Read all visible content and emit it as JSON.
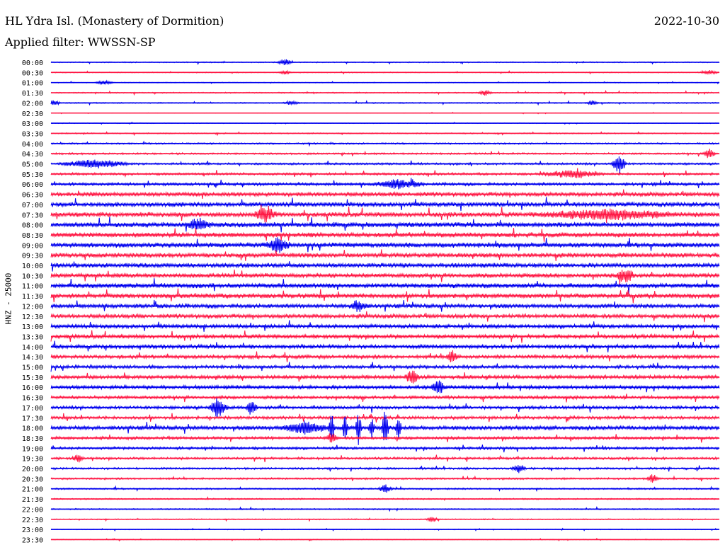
{
  "header": {
    "station": "HL Ydra Isl. (Monastery of Dormition)",
    "date": "2022-10-30",
    "filter": "Applied filter: WWSSN-SP",
    "channel": "HNZ - 25000"
  },
  "colors": {
    "odd_trace": "#0000ee",
    "even_trace": "#ff1744"
  },
  "chart_data": {
    "type": "line",
    "title": "HL Ydra Isl. (Monastery of Dormition)",
    "ylabel": "HNZ - 25000",
    "grid": false,
    "legend": "none",
    "rows": [
      "00:00",
      "00:30",
      "01:00",
      "01:30",
      "02:00",
      "02:30",
      "03:00",
      "03:30",
      "04:00",
      "04:30",
      "05:00",
      "05:30",
      "06:00",
      "06:30",
      "07:00",
      "07:30",
      "08:00",
      "08:30",
      "09:00",
      "09:30",
      "10:00",
      "10:30",
      "11:00",
      "11:30",
      "12:00",
      "12:30",
      "13:00",
      "13:30",
      "14:00",
      "14:30",
      "15:00",
      "15:30",
      "16:00",
      "16:30",
      "17:00",
      "17:30",
      "18:00",
      "18:30",
      "19:00",
      "19:30",
      "20:00",
      "20:30",
      "21:00",
      "21:30",
      "22:00",
      "22:30",
      "23:00",
      "23:30"
    ],
    "trace_colors": [
      "blue",
      "red"
    ],
    "noise_level": [
      0.8,
      0.7,
      0.6,
      0.9,
      0.9,
      0.4,
      0.5,
      0.9,
      1.2,
      1.4,
      1.6,
      1.8,
      2.2,
      3.2,
      3.6,
      3.8,
      3.8,
      3.6,
      3.8,
      3.6,
      3.6,
      3.4,
      3.6,
      3.6,
      3.2,
      3.2,
      3.0,
      3.0,
      3.0,
      2.8,
      2.6,
      2.8,
      2.8,
      2.4,
      2.4,
      2.4,
      3.2,
      2.2,
      2.0,
      1.8,
      1.6,
      1.4,
      1.2,
      1.0,
      1.0,
      0.8,
      0.6,
      0.6
    ],
    "events": [
      {
        "row": 0,
        "t": 0.35,
        "amp": 5,
        "dur": 0.012
      },
      {
        "row": 1,
        "t": 0.35,
        "amp": 3,
        "dur": 0.01
      },
      {
        "row": 1,
        "t": 0.985,
        "amp": 3,
        "dur": 0.015
      },
      {
        "row": 2,
        "t": 0.08,
        "amp": 3,
        "dur": 0.015
      },
      {
        "row": 3,
        "t": 0.65,
        "amp": 4,
        "dur": 0.012
      },
      {
        "row": 4,
        "t": 0.005,
        "amp": 4,
        "dur": 0.01
      },
      {
        "row": 4,
        "t": 0.36,
        "amp": 3,
        "dur": 0.012
      },
      {
        "row": 4,
        "t": 0.81,
        "amp": 3,
        "dur": 0.01
      },
      {
        "row": 9,
        "t": 0.985,
        "amp": 8,
        "dur": 0.01
      },
      {
        "row": 10,
        "t": 0.065,
        "amp": 6,
        "dur": 0.055
      },
      {
        "row": 10,
        "t": 0.85,
        "amp": 14,
        "dur": 0.012
      },
      {
        "row": 11,
        "t": 0.78,
        "amp": 5,
        "dur": 0.05
      },
      {
        "row": 12,
        "t": 0.52,
        "amp": 6,
        "dur": 0.04
      },
      {
        "row": 15,
        "t": 0.32,
        "amp": 10,
        "dur": 0.02
      },
      {
        "row": 15,
        "t": 0.83,
        "amp": 6,
        "dur": 0.12
      },
      {
        "row": 16,
        "t": 0.22,
        "amp": 8,
        "dur": 0.02
      },
      {
        "row": 18,
        "t": 0.34,
        "amp": 9,
        "dur": 0.02
      },
      {
        "row": 21,
        "t": 0.86,
        "amp": 10,
        "dur": 0.015
      },
      {
        "row": 24,
        "t": 0.46,
        "amp": 8,
        "dur": 0.015
      },
      {
        "row": 29,
        "t": 0.6,
        "amp": 10,
        "dur": 0.01
      },
      {
        "row": 31,
        "t": 0.54,
        "amp": 10,
        "dur": 0.012
      },
      {
        "row": 32,
        "t": 0.58,
        "amp": 10,
        "dur": 0.012
      },
      {
        "row": 34,
        "t": 0.25,
        "amp": 14,
        "dur": 0.015
      },
      {
        "row": 34,
        "t": 0.3,
        "amp": 10,
        "dur": 0.01
      },
      {
        "row": 36,
        "t": 0.38,
        "amp": 8,
        "dur": 0.04
      },
      {
        "row": 36,
        "t": 0.42,
        "amp": 22,
        "dur": 0.005
      },
      {
        "row": 36,
        "t": 0.44,
        "amp": 18,
        "dur": 0.005
      },
      {
        "row": 36,
        "t": 0.46,
        "amp": 24,
        "dur": 0.005
      },
      {
        "row": 36,
        "t": 0.48,
        "amp": 16,
        "dur": 0.005
      },
      {
        "row": 36,
        "t": 0.5,
        "amp": 28,
        "dur": 0.006
      },
      {
        "row": 36,
        "t": 0.52,
        "amp": 20,
        "dur": 0.005
      },
      {
        "row": 37,
        "t": 0.42,
        "amp": 8,
        "dur": 0.008
      },
      {
        "row": 39,
        "t": 0.04,
        "amp": 6,
        "dur": 0.01
      },
      {
        "row": 40,
        "t": 0.7,
        "amp": 6,
        "dur": 0.012
      },
      {
        "row": 41,
        "t": 0.9,
        "amp": 6,
        "dur": 0.01
      },
      {
        "row": 42,
        "t": 0.5,
        "amp": 6,
        "dur": 0.012
      },
      {
        "row": 45,
        "t": 0.57,
        "amp": 4,
        "dur": 0.01
      }
    ]
  }
}
